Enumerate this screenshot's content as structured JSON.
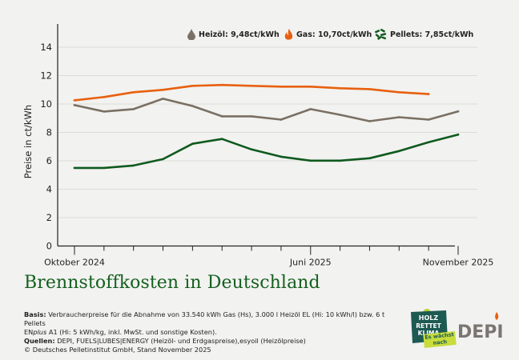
{
  "chart_data": {
    "type": "line",
    "title": "Brennstoffkosten in Deutschland",
    "ylabel": "Preise in ct/kWh",
    "xlabel": "",
    "ylim": [
      0,
      14
    ],
    "yticks": [
      0,
      2,
      4,
      6,
      8,
      10,
      12,
      14
    ],
    "grid": true,
    "legend_placement": "top-right",
    "x": [
      "2024-10",
      "2024-11",
      "2024-12",
      "2025-01",
      "2025-02",
      "2025-03",
      "2025-04",
      "2025-05",
      "2025-06",
      "2025-07",
      "2025-08",
      "2025-09",
      "2025-10",
      "2025-11"
    ],
    "xtick_labels": [
      {
        "month": "2024-10",
        "label": "Oktober 2024"
      },
      {
        "month": "2025-06",
        "label": "Juni 2025"
      },
      {
        "month": "2025-11",
        "label": "November 2025"
      }
    ],
    "series": [
      {
        "name": "Heizöl",
        "legend": "Heizöl: 9,48ct/kWh",
        "color": "#7a7063",
        "icon": "oil-drop-icon",
        "values": [
          9.92,
          9.47,
          9.64,
          10.37,
          9.86,
          9.13,
          9.13,
          8.9,
          9.64,
          9.24,
          8.79,
          9.07,
          8.9,
          9.48
        ]
      },
      {
        "name": "Gas",
        "legend": "Gas: 10,70ct/kWh",
        "color": "#e8600f",
        "icon": "flame-icon",
        "values": [
          10.26,
          10.49,
          10.83,
          11.0,
          11.28,
          11.34,
          11.28,
          11.22,
          11.22,
          11.11,
          11.05,
          10.83,
          10.7,
          null
        ]
      },
      {
        "name": "Pellets",
        "legend": "Pellets: 7,85ct/kWh",
        "color": "#0f5a1e",
        "icon": "pellets-icon",
        "values": [
          5.5,
          5.5,
          5.67,
          6.12,
          7.2,
          7.54,
          6.8,
          6.29,
          6.01,
          6.01,
          6.18,
          6.69,
          7.31,
          7.85
        ]
      }
    ]
  },
  "notes": {
    "basis_label": "Basis:",
    "basis_text": " Verbraucherpreise für die Abnahme von 33.540 kWh Gas (Hs), 3.000 l Heizöl EL (Hi: 10 kWh/l) bzw. 6 t Pellets",
    "basis_text2_prefix": "EN",
    "basis_text2_italic": "plus",
    "basis_text2": " A1 (Hi: 5 kWh/kg, inkl. MwSt. und sonstige Kosten).",
    "sources_label": "Quellen:",
    "sources_text": " DEPI, FUELS|LUBES|ENERGY (Heizöl- und Erdgaspreise),esyoil (Heizölpreise)",
    "copyright": "© Deutsches Pelletinstitut GmbH, Stand November 2025"
  },
  "logos": {
    "holz": [
      "HOLZ",
      "RETTET",
      "KLIMA",
      "Es wächst nach"
    ],
    "depi": "DEPI"
  },
  "colors": {
    "background": "#f2f2f0",
    "title": "#14601f",
    "holz_logo": "#1d5a52",
    "depi_text": "#7a7672",
    "depi_flame": "#e8600f"
  }
}
